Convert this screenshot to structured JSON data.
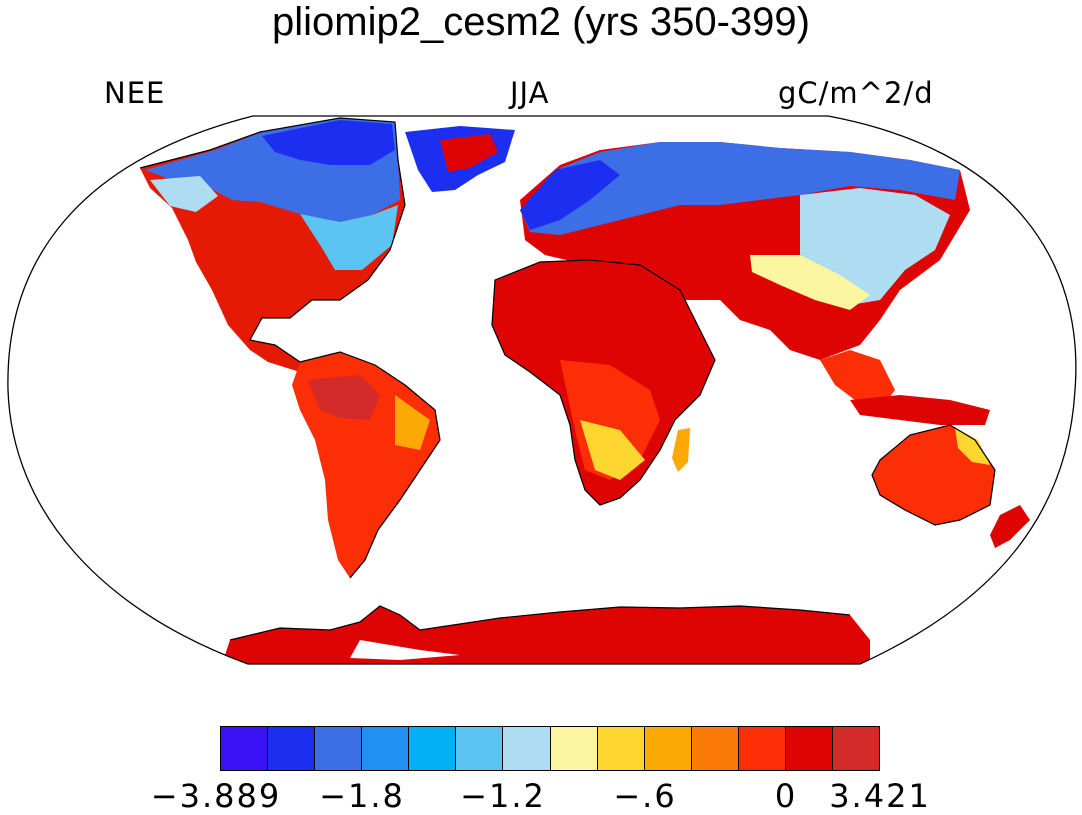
{
  "title": "pliomip2_cesm2 (yrs 350-399)",
  "subtitle_left": "NEE",
  "subtitle_center": "JJA",
  "subtitle_right": "gC/m^2/d",
  "colorbar": {
    "colors": [
      "#3a12f5",
      "#1c2ff0",
      "#3c6fe6",
      "#2090f2",
      "#03b0f5",
      "#5cc4f2",
      "#aedcf0",
      "#fcf6a0",
      "#fdd630",
      "#fca905",
      "#fc7a0a",
      "#fb2e05",
      "#de0404",
      "#d42a2a"
    ],
    "labels": [
      "−3.889",
      "−1.8",
      "−1.2",
      "−.6",
      "0",
      "3.421"
    ]
  },
  "regions": {
    "land_default_color": "#de0404",
    "ocean_color": "#ffffff"
  }
}
